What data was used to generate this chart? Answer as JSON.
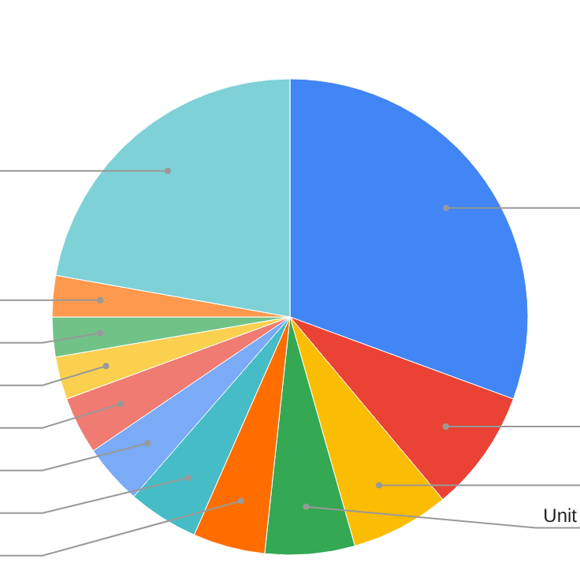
{
  "chart_data": {
    "type": "pie",
    "categories": [
      null,
      null,
      null,
      "Unit",
      null,
      null,
      null,
      null,
      null,
      null,
      null,
      null
    ],
    "values": [
      30.6,
      8.3,
      6.7,
      6.1,
      4.9,
      4.8,
      4.1,
      3.9,
      2.9,
      2.7,
      2.8,
      22.2
    ],
    "colors": [
      "#4285f4",
      "#ea4335",
      "#fbbc04",
      "#34a853",
      "#ff6d01",
      "#46bdc6",
      "#7baaf7",
      "#f07b72",
      "#fcd04f",
      "#71c287",
      "#ff994d",
      "#7ed1d7"
    ],
    "legend": false
  }
}
